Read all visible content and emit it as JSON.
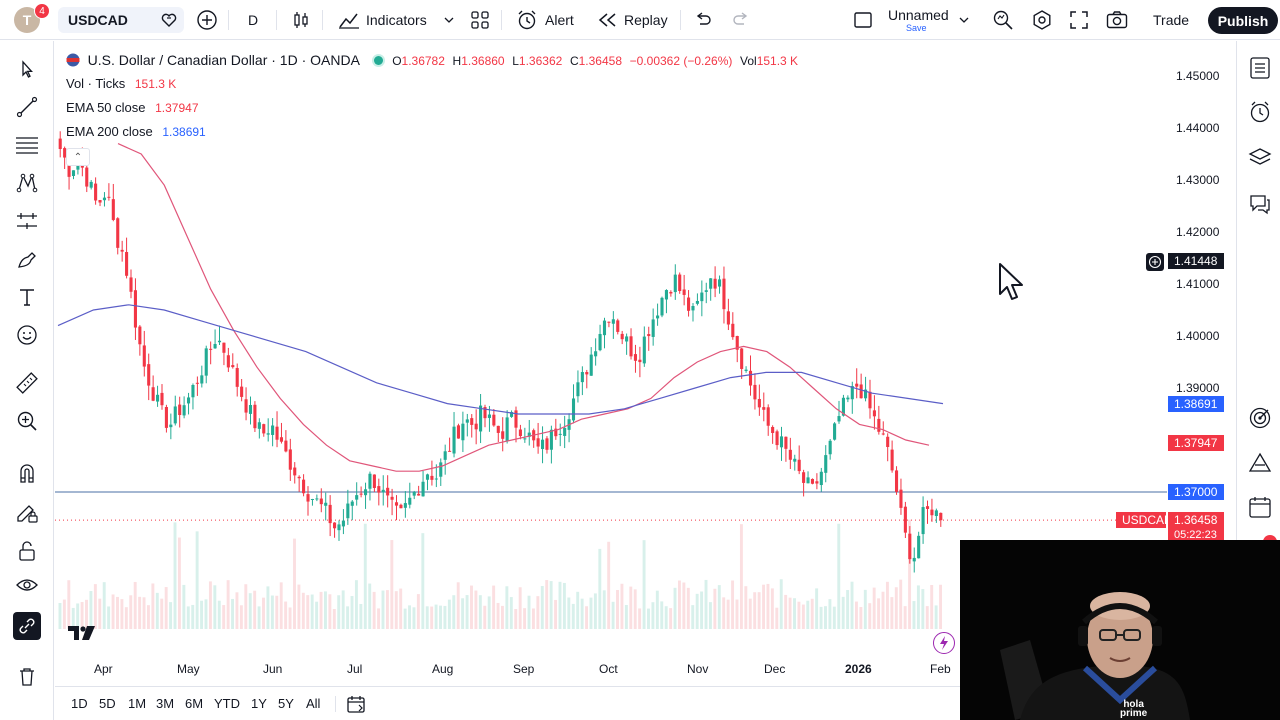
{
  "header": {
    "avatar_letter": "T",
    "notification_count": "4",
    "symbol": "USDCAD",
    "interval": "D",
    "indicators_label": "Indicators",
    "alert_label": "Alert",
    "replay_label": "Replay",
    "layout_name": "Unnamed",
    "layout_save": "Save",
    "trade_label": "Trade",
    "publish_label": "Publish"
  },
  "legend": {
    "title": "U.S. Dollar / Canadian Dollar · 1D · OANDA",
    "open_k": "O",
    "open": "1.36782",
    "high_k": "H",
    "high": "1.36860",
    "low_k": "L",
    "low": "1.36362",
    "close_k": "C",
    "close": "1.36458",
    "change": "−0.00362 (−0.26%)",
    "vol_k": "Vol",
    "vol": "151.3 K",
    "vol_study": "Vol · Ticks",
    "vol_study_value": "151.3 K",
    "ema50_label": "EMA 50 close",
    "ema50_value": "1.37947",
    "ema200_label": "EMA 200 close",
    "ema200_value": "1.38691"
  },
  "price_axis": {
    "levels": [
      "1.45000",
      "1.44000",
      "1.43000",
      "1.42000",
      "1.41000",
      "1.40000",
      "1.39000"
    ],
    "crosshair_value": "1.41448",
    "ema200_tag": "1.38691",
    "ema50_tag": "1.37947",
    "hline_tag": "1.37000",
    "symbol_tag": "USDCAD",
    "last_price_tag": "1.36458",
    "countdown": "05:22:23"
  },
  "time_axis": {
    "labels": [
      "Apr",
      "May",
      "Jun",
      "Jul",
      "Aug",
      "Sep",
      "Oct",
      "Nov",
      "Dec",
      "2026",
      "Feb"
    ]
  },
  "range_bar": {
    "ranges": [
      "1D",
      "5D",
      "1M",
      "3M",
      "6M",
      "YTD",
      "1Y",
      "5Y",
      "All"
    ]
  },
  "colors": {
    "up": "#22ab94",
    "down": "#f23645",
    "ema50": "#e0567a",
    "ema200": "#5b5ec7",
    "hline": "#4a6fa5",
    "accent": "#2962ff"
  },
  "icons": {
    "left_toolbar": [
      "cursor-icon",
      "trend-line-icon",
      "fib-icon",
      "pattern-icon",
      "forecast-icon",
      "brush-icon",
      "text-icon",
      "emoji-icon",
      "ruler-icon",
      "zoom-icon",
      "magnet-icon",
      "lock-drawings-icon",
      "lock-icon",
      "eye-icon",
      "link-icon",
      "trash-icon"
    ],
    "right_toolbar": [
      "watchlist-icon",
      "alerts-clock-icon",
      "layers-icon",
      "chat-icon",
      "target-icon",
      "triangle-icon",
      "calendar-icon"
    ]
  },
  "webcam": {
    "logo_line1": "hola",
    "logo_line2": "prime"
  },
  "chart_data": {
    "type": "candlestick",
    "title": "U.S. Dollar / Canadian Dollar · 1D · OANDA",
    "ylim": [
      1.355,
      1.455
    ],
    "x_labels": [
      "Apr",
      "May",
      "Jun",
      "Jul",
      "Aug",
      "Sep",
      "Oct",
      "Nov",
      "Dec",
      "2026",
      "Feb"
    ],
    "close_path": [
      1.436,
      1.432,
      1.434,
      1.43,
      1.425,
      1.428,
      1.42,
      1.415,
      1.405,
      1.395,
      1.39,
      1.385,
      1.383,
      1.386,
      1.388,
      1.392,
      1.396,
      1.4,
      1.397,
      1.392,
      1.388,
      1.384,
      1.381,
      1.383,
      1.379,
      1.376,
      1.373,
      1.37,
      1.368,
      1.366,
      1.363,
      1.365,
      1.369,
      1.371,
      1.373,
      1.37,
      1.367,
      1.365,
      1.368,
      1.371,
      1.374,
      1.373,
      1.377,
      1.381,
      1.384,
      1.383,
      1.385,
      1.383,
      1.381,
      1.384,
      1.383,
      1.381,
      1.378,
      1.379,
      1.382,
      1.384,
      1.388,
      1.392,
      1.397,
      1.402,
      1.405,
      1.401,
      1.398,
      1.396,
      1.401,
      1.405,
      1.409,
      1.411,
      1.407,
      1.404,
      1.408,
      1.412,
      1.409,
      1.403,
      1.397,
      1.392,
      1.387,
      1.383,
      1.381,
      1.378,
      1.375,
      1.372,
      1.37,
      1.374,
      1.379,
      1.385,
      1.388,
      1.391,
      1.387,
      1.383,
      1.379,
      1.372,
      1.362,
      1.357,
      1.365,
      1.367,
      1.3646
    ],
    "ema50": [
      1.437,
      1.435,
      1.429,
      1.419,
      1.409,
      1.401,
      1.394,
      1.388,
      1.383,
      1.379,
      1.376,
      1.375,
      1.374,
      1.374,
      1.375,
      1.377,
      1.379,
      1.38,
      1.381,
      1.382,
      1.384,
      1.385,
      1.386,
      1.388,
      1.392,
      1.395,
      1.397,
      1.398,
      1.397,
      1.394,
      1.39,
      1.386,
      1.383,
      1.382,
      1.38,
      1.379
    ],
    "ema200": [
      1.402,
      1.405,
      1.406,
      1.405,
      1.403,
      1.401,
      1.399,
      1.397,
      1.394,
      1.391,
      1.389,
      1.387,
      1.386,
      1.385,
      1.385,
      1.385,
      1.386,
      1.388,
      1.39,
      1.392,
      1.393,
      1.393,
      1.391,
      1.389,
      1.388,
      1.387
    ],
    "hline": 1.37,
    "last_price": 1.36458
  }
}
